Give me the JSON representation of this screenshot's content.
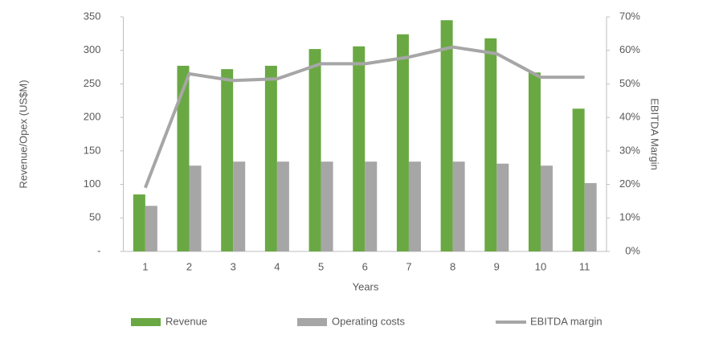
{
  "chart_data": {
    "type": "bar-line",
    "x_label": "Years",
    "y_label": "Revenue/Opex (US$M)",
    "y2_label": "EBITDA Margin",
    "categories": [
      "1",
      "2",
      "3",
      "4",
      "5",
      "6",
      "7",
      "8",
      "9",
      "10",
      "11"
    ],
    "series": [
      {
        "name": "Revenue",
        "type": "bar",
        "color": "#6aa843",
        "values": [
          85,
          277,
          272,
          277,
          302,
          306,
          324,
          345,
          318,
          267,
          213
        ]
      },
      {
        "name": "Operating costs",
        "type": "bar",
        "color": "#a6a6a6",
        "values": [
          68,
          128,
          134,
          134,
          134,
          134,
          134,
          134,
          131,
          128,
          102
        ]
      },
      {
        "name": "EBITDA margin",
        "type": "line",
        "axis": "y2",
        "color": "#a6a6a6",
        "values": [
          19,
          53,
          51,
          51.5,
          56,
          56,
          58,
          61,
          59,
          52,
          52
        ]
      }
    ],
    "ylim": [
      0,
      350
    ],
    "yticks": [
      {
        "value": 0,
        "label": "-"
      },
      50,
      100,
      150,
      200,
      250,
      300,
      350
    ],
    "y2lim": [
      0,
      70
    ],
    "y2ticks": [
      {
        "value": 0,
        "label": "0%"
      },
      {
        "value": 10,
        "label": "10%"
      },
      {
        "value": 20,
        "label": "20%"
      },
      {
        "value": 30,
        "label": "30%"
      },
      {
        "value": 40,
        "label": "40%"
      },
      {
        "value": 50,
        "label": "50%"
      },
      {
        "value": 60,
        "label": "60%"
      },
      {
        "value": 70,
        "label": "70%"
      }
    ],
    "grid": false,
    "legend": "bottom"
  }
}
